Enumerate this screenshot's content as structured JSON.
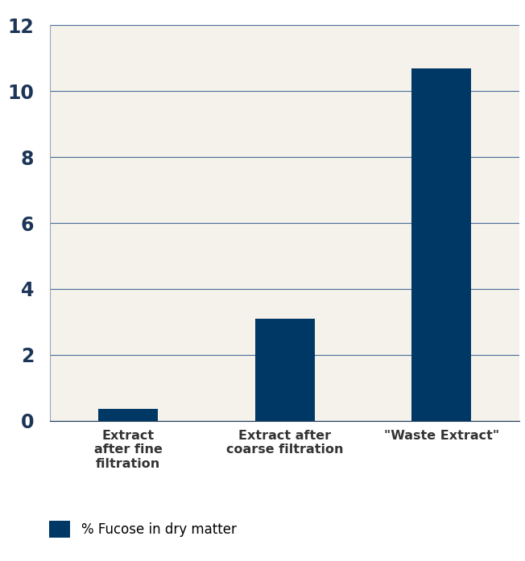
{
  "chart_data": {
    "type": "bar",
    "categories": [
      "Extract\nafter fine\nfiltration",
      "Extract after\ncoarse filtration",
      "\"Waste Extract\""
    ],
    "series": [
      {
        "name": "% Fucose in dry matter",
        "color": "#003865",
        "values": [
          0.35,
          3.1,
          10.7
        ]
      }
    ],
    "ylim": [
      0,
      12
    ],
    "yticks": [
      0,
      2,
      4,
      6,
      8,
      10,
      12
    ],
    "grid": true,
    "legend": "lower left"
  }
}
